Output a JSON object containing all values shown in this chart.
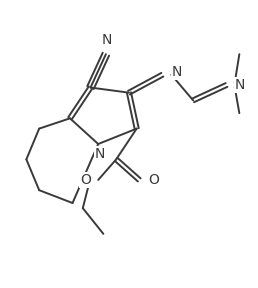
{
  "bg_color": "#ffffff",
  "line_color": "#3a3a3a",
  "line_width": 1.4,
  "figsize": [
    2.58,
    2.88
  ],
  "dpi": 100,
  "xlim": [
    0,
    10
  ],
  "ylim": [
    0,
    11
  ]
}
